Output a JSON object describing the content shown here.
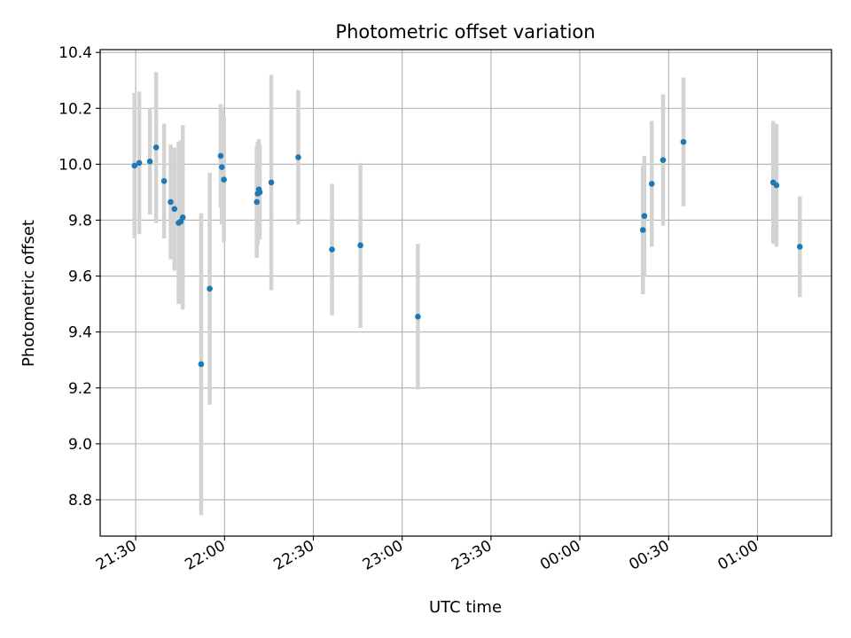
{
  "chart_data": {
    "type": "scatter",
    "title": "Photometric offset variation",
    "xlabel": "UTC time",
    "ylabel": "Photometric offset",
    "x_ticks": [
      "21:30",
      "22:00",
      "22:30",
      "23:00",
      "23:30",
      "00:00",
      "00:30",
      "01:00"
    ],
    "y_ticks": [
      "8.8",
      "9.0",
      "9.2",
      "9.4",
      "9.6",
      "9.8",
      "10.0",
      "10.2",
      "10.4"
    ],
    "xlim": [
      "21:18",
      "01:25"
    ],
    "ylim": [
      8.67,
      10.41
    ],
    "grid": true,
    "errorbar_color": "#d3d3d3",
    "point_color": "#1f77b4",
    "points": [
      {
        "x": "21:29:36",
        "y": 9.995,
        "err": 0.26
      },
      {
        "x": "21:31:12",
        "y": 10.005,
        "err": 0.255
      },
      {
        "x": "21:34:48",
        "y": 10.01,
        "err": 0.19
      },
      {
        "x": "21:36:54",
        "y": 10.06,
        "err": 0.27
      },
      {
        "x": "21:39:36",
        "y": 9.94,
        "err": 0.205
      },
      {
        "x": "21:41:48",
        "y": 9.865,
        "err": 0.205
      },
      {
        "x": "21:43:06",
        "y": 9.84,
        "err": 0.22
      },
      {
        "x": "21:44:30",
        "y": 9.79,
        "err": 0.29
      },
      {
        "x": "21:45:12",
        "y": 9.795,
        "err": 0.29
      },
      {
        "x": "21:45:54",
        "y": 9.81,
        "err": 0.33
      },
      {
        "x": "21:52:06",
        "y": 9.285,
        "err": 0.54
      },
      {
        "x": "21:55:00",
        "y": 9.555,
        "err": 0.415
      },
      {
        "x": "21:58:42",
        "y": 10.03,
        "err": 0.185
      },
      {
        "x": "21:59:06",
        "y": 9.99,
        "err": 0.205
      },
      {
        "x": "21:59:48",
        "y": 9.945,
        "err": 0.225
      },
      {
        "x": "22:10:54",
        "y": 9.865,
        "err": 0.2
      },
      {
        "x": "22:11:12",
        "y": 9.895,
        "err": 0.185
      },
      {
        "x": "22:11:36",
        "y": 9.91,
        "err": 0.18
      },
      {
        "x": "22:11:54",
        "y": 9.9,
        "err": 0.17
      },
      {
        "x": "22:15:48",
        "y": 9.935,
        "err": 0.385
      },
      {
        "x": "22:24:54",
        "y": 10.025,
        "err": 0.24
      },
      {
        "x": "22:36:18",
        "y": 9.695,
        "err": 0.235
      },
      {
        "x": "22:45:54",
        "y": 9.71,
        "err": 0.295
      },
      {
        "x": "23:05:18",
        "y": 9.455,
        "err": 0.26
      },
      {
        "x": "00:21:18",
        "y": 9.765,
        "err": 0.23
      },
      {
        "x": "00:21:48",
        "y": 9.815,
        "err": 0.215
      },
      {
        "x": "00:24:18",
        "y": 9.93,
        "err": 0.225
      },
      {
        "x": "00:28:06",
        "y": 10.015,
        "err": 0.235
      },
      {
        "x": "00:35:00",
        "y": 10.08,
        "err": 0.23
      },
      {
        "x": "01:05:18",
        "y": 9.935,
        "err": 0.22
      },
      {
        "x": "01:06:24",
        "y": 9.925,
        "err": 0.22
      },
      {
        "x": "01:14:18",
        "y": 9.705,
        "err": 0.18
      }
    ]
  }
}
